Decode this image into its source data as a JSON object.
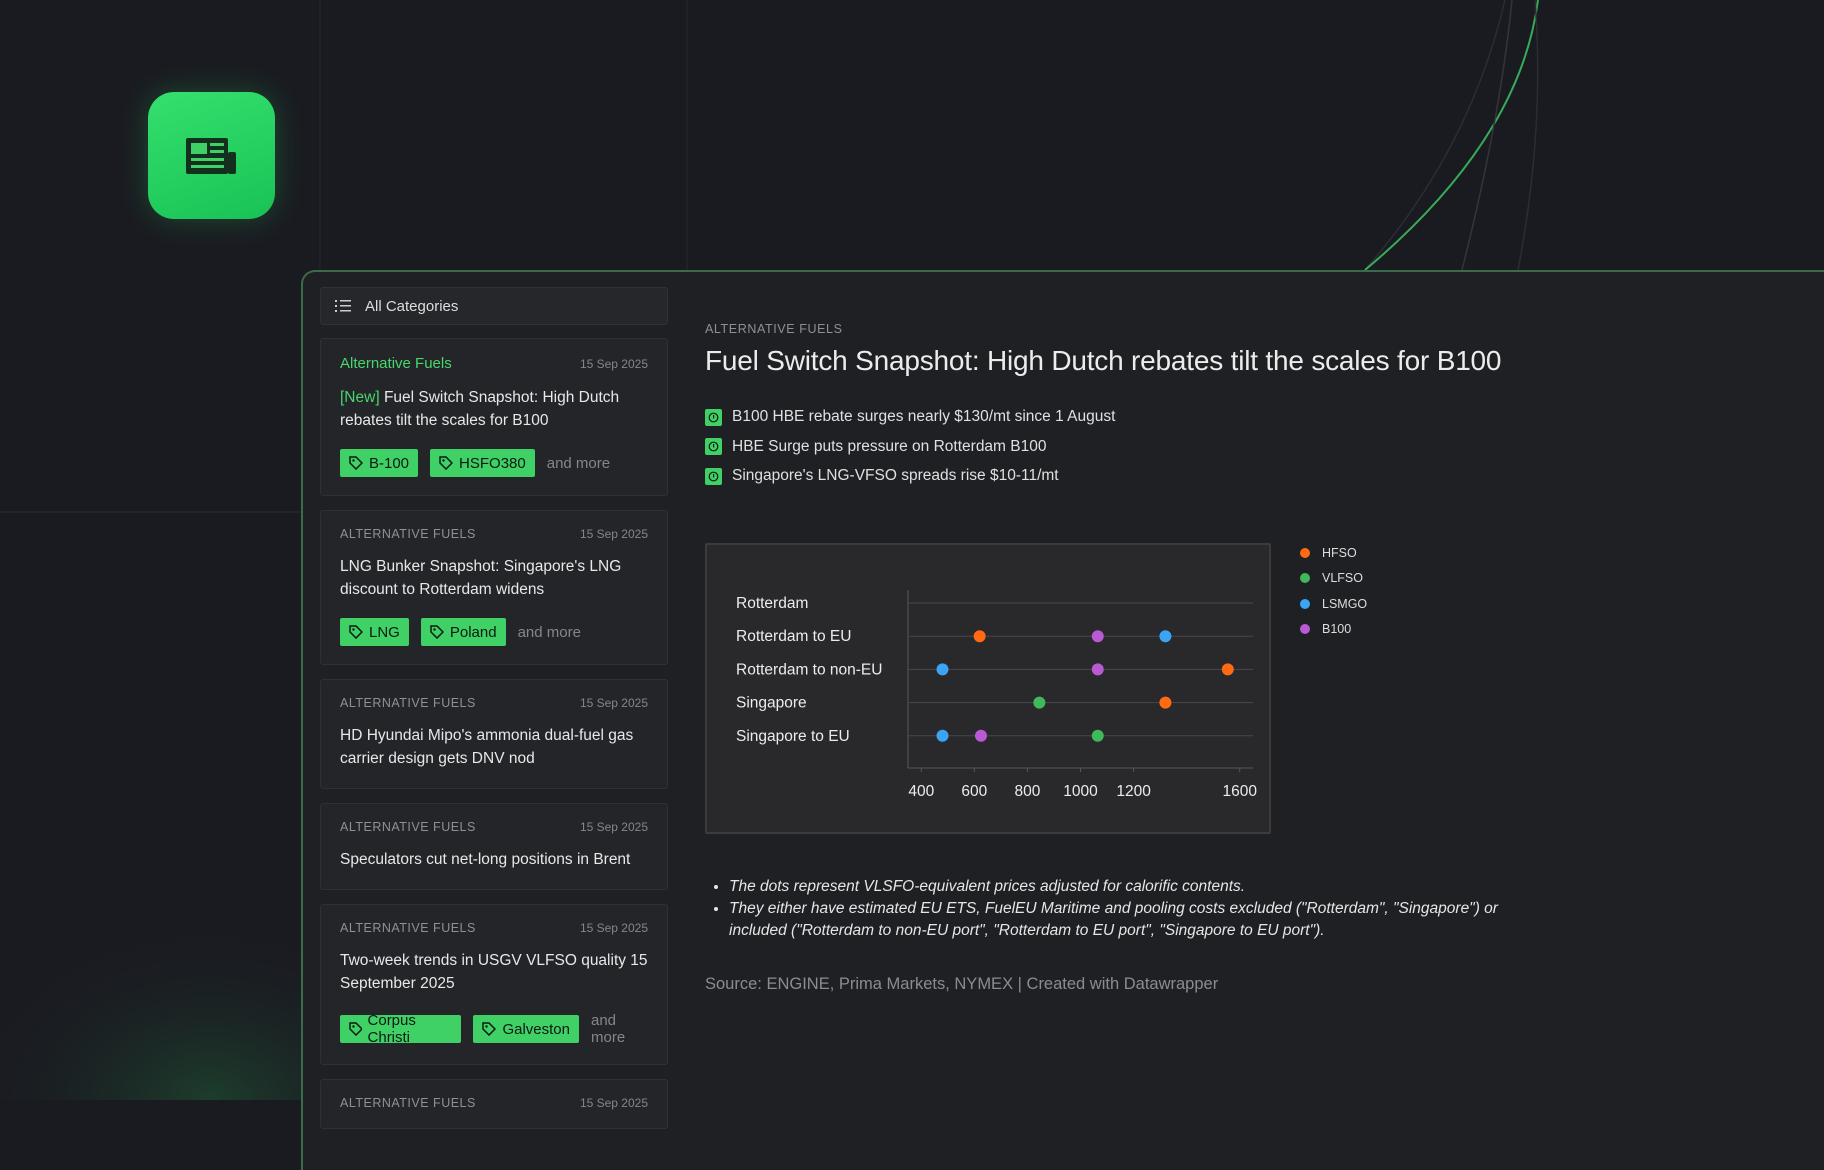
{
  "sidebar": {
    "filter": "All Categories",
    "articles": [
      {
        "category": "Alternative Fuels",
        "date": "15 Sep 2025",
        "badge": "[New]",
        "title": "Fuel Switch Snapshot: High Dutch rebates tilt the scales for B100",
        "tags": [
          "B-100",
          "HSFO380"
        ],
        "more": "and more"
      },
      {
        "category": "ALTERNATIVE FUELS",
        "date": "15 Sep 2025",
        "title": "LNG Bunker Snapshot: Singapore's LNG discount to Rotterdam widens",
        "tags": [
          "LNG",
          "Poland"
        ],
        "more": "and more"
      },
      {
        "category": "ALTERNATIVE FUELS",
        "date": "15 Sep 2025",
        "title": "HD Hyundai Mipo's ammonia dual-fuel gas carrier design gets DNV nod"
      },
      {
        "category": "ALTERNATIVE FUELS",
        "date": "15 Sep 2025",
        "title": "Speculators cut net-long positions in Brent"
      },
      {
        "category": "ALTERNATIVE FUELS",
        "date": "15 Sep 2025",
        "title": "Two-week trends in USGV VLFSO quality 15 September 2025",
        "tags": [
          "Corpus Christi",
          "Galveston"
        ],
        "more": "and more"
      },
      {
        "category": "ALTERNATIVE FUELS",
        "date": "15 Sep 2025"
      }
    ]
  },
  "article": {
    "category": "ALTERNATIVE FUELS",
    "title": "Fuel Switch Snapshot: High Dutch rebates tilt the scales for B100",
    "highlights": [
      "B100 HBE rebate surges nearly $130/mt since 1 August",
      "HBE Surge puts pressure on Rotterdam B100",
      "Singapore's LNG-VFSO spreads rise $10-11/mt"
    ],
    "notes": [
      "The dots represent VLSFO-equivalent prices adjusted for calorific contents.",
      "They either have estimated EU ETS, FuelEU Maritime and pooling costs excluded (\"Rotterdam\", \"Singapore\") or included (\"Rotterdam to non-EU port\", \"Rotterdam to EU port\", \"Singapore to EU port\")."
    ],
    "source": "Source: ENGINE, Prima Markets, NYMEX | Created with Datawrapper"
  },
  "chart_data": {
    "type": "dot",
    "categories": [
      "Rotterdam",
      "Rotterdam to EU",
      "Rotterdam to non-EU",
      "Singapore",
      "Singapore to EU"
    ],
    "series": [
      {
        "name": "HFSO",
        "color": "#ff6a13",
        "values": [
          null,
          620,
          1555,
          1320,
          null
        ]
      },
      {
        "name": "VLFSO",
        "color": "#3fb95a",
        "values": [
          null,
          null,
          null,
          845,
          1065
        ]
      },
      {
        "name": "LSMGO",
        "color": "#3ba4f5",
        "values": [
          null,
          1320,
          480,
          null,
          480
        ]
      },
      {
        "name": "B100",
        "color": "#b95ad4",
        "values": [
          null,
          1065,
          1065,
          null,
          625
        ]
      }
    ],
    "xlim": [
      350,
      1650
    ],
    "xticks": [
      400,
      600,
      800,
      1000,
      1200,
      1600
    ],
    "grid": true
  }
}
